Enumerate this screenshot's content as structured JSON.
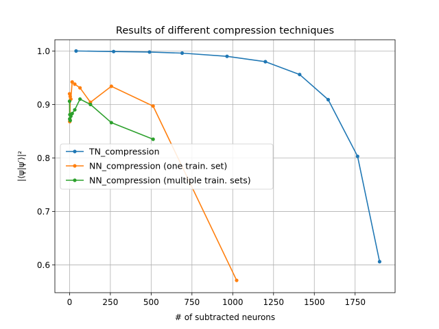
{
  "chart_data": {
    "type": "line",
    "title": "Results of different compression techniques",
    "xlabel": "# of subtracted neurons",
    "ylabel": "|⟨ψ|ψ′⟩|²",
    "xlim": [
      -90,
      1995
    ],
    "ylim": [
      0.548,
      1.021
    ],
    "xticks": [
      0,
      250,
      500,
      750,
      1000,
      1250,
      1500,
      1750
    ],
    "yticks": [
      0.6,
      0.7,
      0.8,
      0.9,
      1.0
    ],
    "xtick_labels": [
      "0",
      "250",
      "500",
      "750",
      "1000",
      "1250",
      "1500",
      "1750"
    ],
    "ytick_labels": [
      "0.6",
      "0.7",
      "0.8",
      "0.9",
      "1.0"
    ],
    "grid": true,
    "legend_position": "center-left",
    "series": [
      {
        "name": "TN_compression",
        "color": "#1f77b4",
        "x": [
          40,
          270,
          490,
          690,
          965,
          1200,
          1410,
          1585,
          1765,
          1900
        ],
        "y": [
          1.0,
          0.999,
          0.998,
          0.996,
          0.99,
          0.98,
          0.956,
          0.909,
          0.803,
          0.606
        ]
      },
      {
        "name": "NN_compression (one train. set)",
        "color": "#ff7f0e",
        "x": [
          0,
          1,
          2,
          4,
          8,
          16,
          32,
          64,
          128,
          256,
          512,
          1024
        ],
        "y": [
          0.92,
          0.868,
          0.872,
          0.915,
          0.91,
          0.942,
          0.938,
          0.931,
          0.904,
          0.934,
          0.897,
          0.571
        ]
      },
      {
        "name": "NN_compression (multiple train. sets)",
        "color": "#2ca02c",
        "x": [
          0,
          1,
          2,
          4,
          8,
          16,
          32,
          64,
          128,
          256,
          512
        ],
        "y": [
          0.906,
          0.873,
          0.881,
          0.87,
          0.878,
          0.883,
          0.89,
          0.91,
          0.9,
          0.866,
          0.835
        ]
      }
    ]
  }
}
